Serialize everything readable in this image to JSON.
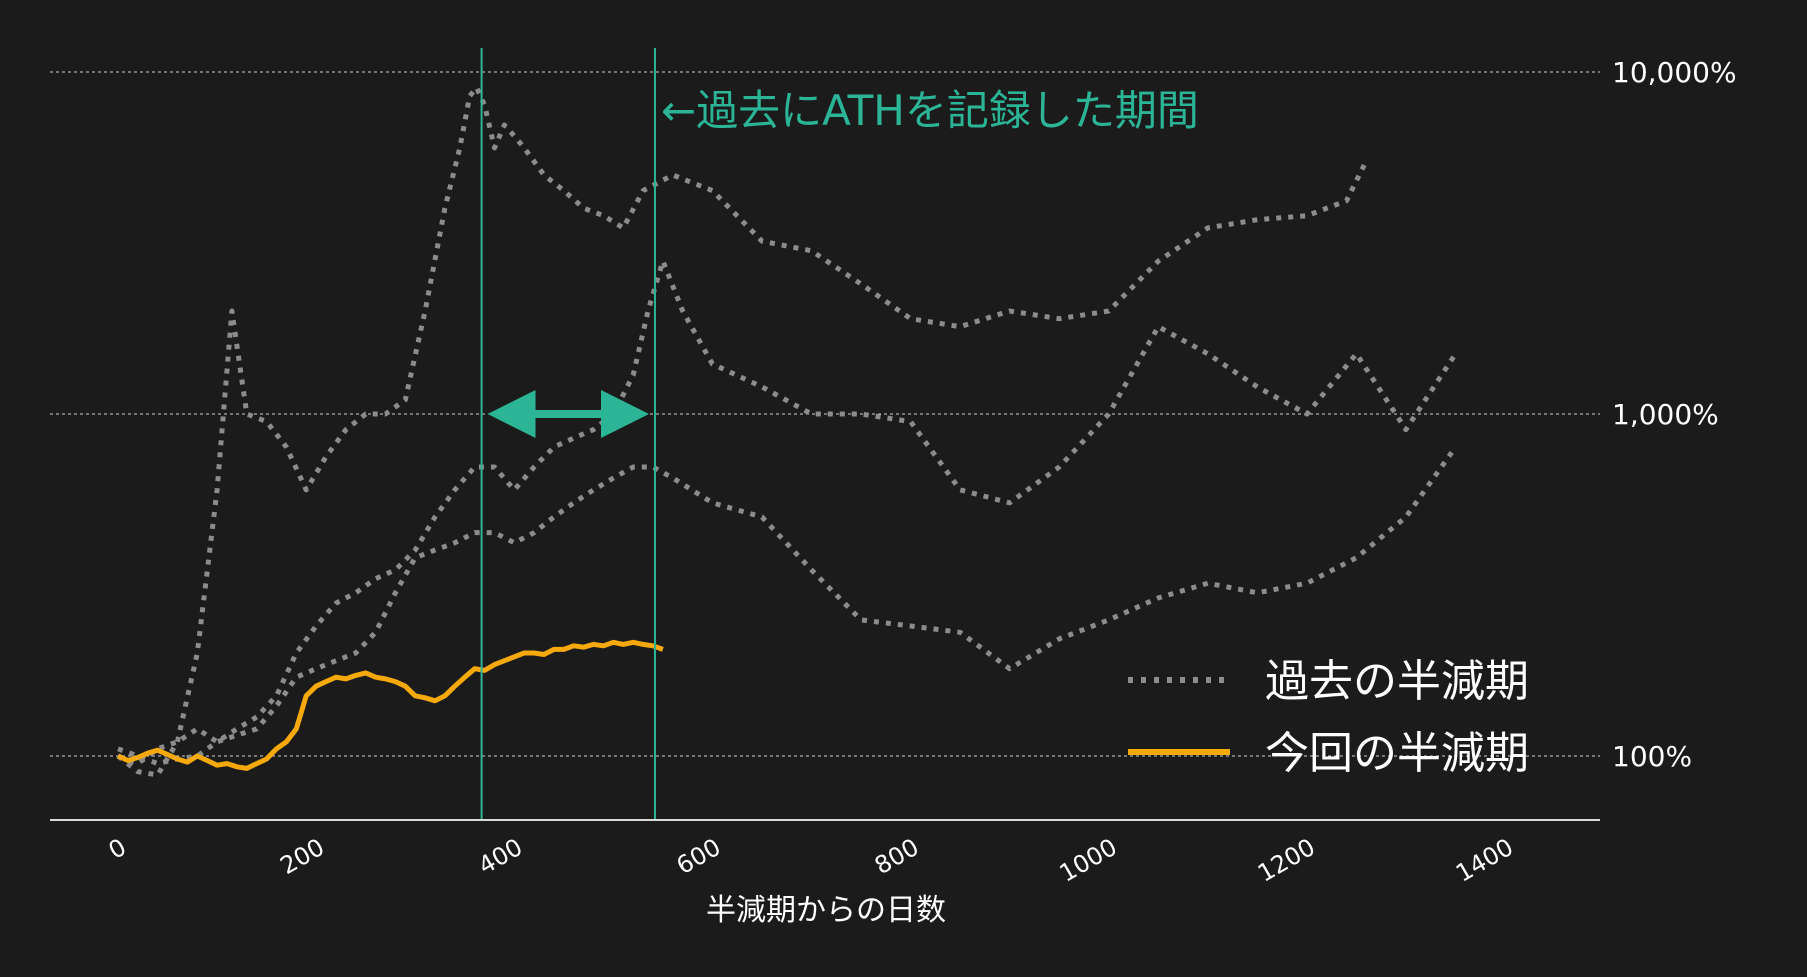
{
  "chart_data": {
    "type": "line",
    "xlabel": "半減期からの日数",
    "ylabel": "",
    "xlim": [
      -35,
      1450
    ],
    "ylim": [
      70,
      11000
    ],
    "yscale": "log",
    "x_ticks": [
      0,
      200,
      400,
      600,
      800,
      1000,
      1200,
      1400
    ],
    "x_tick_labels": [
      "0",
      "200",
      "400",
      "600",
      "800",
      "1000",
      "1200",
      "1400"
    ],
    "y_ticks": [
      100,
      1000,
      10000
    ],
    "y_tick_labels": [
      "100%",
      "1,000%",
      "10,000%"
    ],
    "grid": "horizontal dashed",
    "legend_position": "bottom-right",
    "legend": [
      {
        "label": "過去の半減期",
        "style": "dotted",
        "color": "#8c8c8c"
      },
      {
        "label": "今回の半減期",
        "style": "solid",
        "color": "#f5a90a"
      }
    ],
    "ath_period": {
      "start": 367,
      "end": 542,
      "label": "←過去にATHを記録した期間",
      "color": "#2bb596"
    },
    "series": [
      {
        "group": "過去の半減期",
        "x": [
          0,
          20,
          40,
          60,
          80,
          100,
          115,
          130,
          150,
          170,
          190,
          210,
          230,
          250,
          270,
          290,
          310,
          330,
          345,
          355,
          362,
          370,
          380,
          390,
          400,
          410,
          430,
          450,
          470,
          490,
          510,
          530,
          560,
          600,
          650,
          700,
          750,
          800,
          850,
          900,
          950,
          1000,
          1050,
          1100,
          1150,
          1200,
          1240,
          1260
        ],
        "values": [
          100,
          90,
          88,
          110,
          200,
          600,
          2000,
          1000,
          950,
          800,
          600,
          750,
          900,
          1000,
          1000,
          1100,
          2000,
          4000,
          6000,
          8500,
          9000,
          8000,
          6000,
          7000,
          6500,
          6000,
          5000,
          4500,
          4000,
          3800,
          3500,
          4500,
          5000,
          4500,
          3200,
          3000,
          2400,
          1900,
          1800,
          2000,
          1900,
          2000,
          2800,
          3500,
          3700,
          3800,
          4200,
          5500
        ]
      },
      {
        "group": "過去の半減期",
        "x": [
          0,
          20,
          40,
          60,
          80,
          100,
          120,
          140,
          160,
          180,
          200,
          220,
          240,
          260,
          280,
          300,
          320,
          340,
          360,
          380,
          400,
          420,
          440,
          460,
          480,
          500,
          520,
          535,
          550,
          570,
          600,
          650,
          700,
          750,
          800,
          850,
          900,
          950,
          1000,
          1050,
          1100,
          1150,
          1200,
          1250,
          1300,
          1350
        ],
        "values": [
          100,
          95,
          105,
          110,
          120,
          110,
          120,
          130,
          150,
          200,
          240,
          280,
          300,
          330,
          350,
          400,
          500,
          600,
          700,
          700,
          600,
          700,
          800,
          850,
          900,
          1000,
          1300,
          2000,
          2800,
          2000,
          1400,
          1200,
          1000,
          1000,
          950,
          600,
          550,
          700,
          1000,
          1800,
          1500,
          1200,
          1000,
          1500,
          900,
          1500
        ]
      },
      {
        "group": "過去の半減期",
        "x": [
          0,
          20,
          40,
          60,
          80,
          100,
          120,
          140,
          160,
          180,
          200,
          220,
          240,
          260,
          280,
          300,
          320,
          340,
          360,
          380,
          400,
          420,
          440,
          460,
          480,
          500,
          520,
          540,
          560,
          600,
          650,
          700,
          750,
          800,
          850,
          900,
          950,
          1000,
          1050,
          1100,
          1150,
          1200,
          1250,
          1300,
          1350
        ],
        "values": [
          105,
          100,
          95,
          98,
          100,
          110,
          115,
          120,
          140,
          170,
          180,
          190,
          200,
          230,
          300,
          380,
          400,
          420,
          450,
          450,
          420,
          450,
          500,
          550,
          600,
          650,
          700,
          700,
          650,
          550,
          500,
          350,
          250,
          240,
          230,
          180,
          220,
          250,
          290,
          320,
          300,
          320,
          380,
          500,
          800
        ]
      },
      {
        "group": "今回の半減期",
        "x": [
          0,
          10,
          20,
          30,
          40,
          50,
          60,
          70,
          80,
          90,
          100,
          110,
          120,
          130,
          140,
          150,
          160,
          170,
          180,
          190,
          200,
          210,
          220,
          230,
          240,
          250,
          260,
          270,
          280,
          290,
          300,
          310,
          320,
          330,
          340,
          350,
          360,
          370,
          380,
          390,
          400,
          410,
          420,
          430,
          440,
          450,
          460,
          470,
          480,
          490,
          500,
          510,
          520,
          530,
          540,
          550
        ],
        "values": [
          100,
          97,
          99,
          102,
          104,
          101,
          98,
          96,
          100,
          97,
          94,
          95,
          93,
          92,
          95,
          98,
          105,
          110,
          120,
          150,
          160,
          165,
          170,
          168,
          172,
          175,
          170,
          168,
          165,
          160,
          150,
          148,
          145,
          150,
          160,
          170,
          180,
          178,
          185,
          190,
          195,
          200,
          200,
          198,
          205,
          205,
          210,
          208,
          212,
          210,
          215,
          212,
          215,
          212,
          210,
          205
        ]
      }
    ]
  }
}
